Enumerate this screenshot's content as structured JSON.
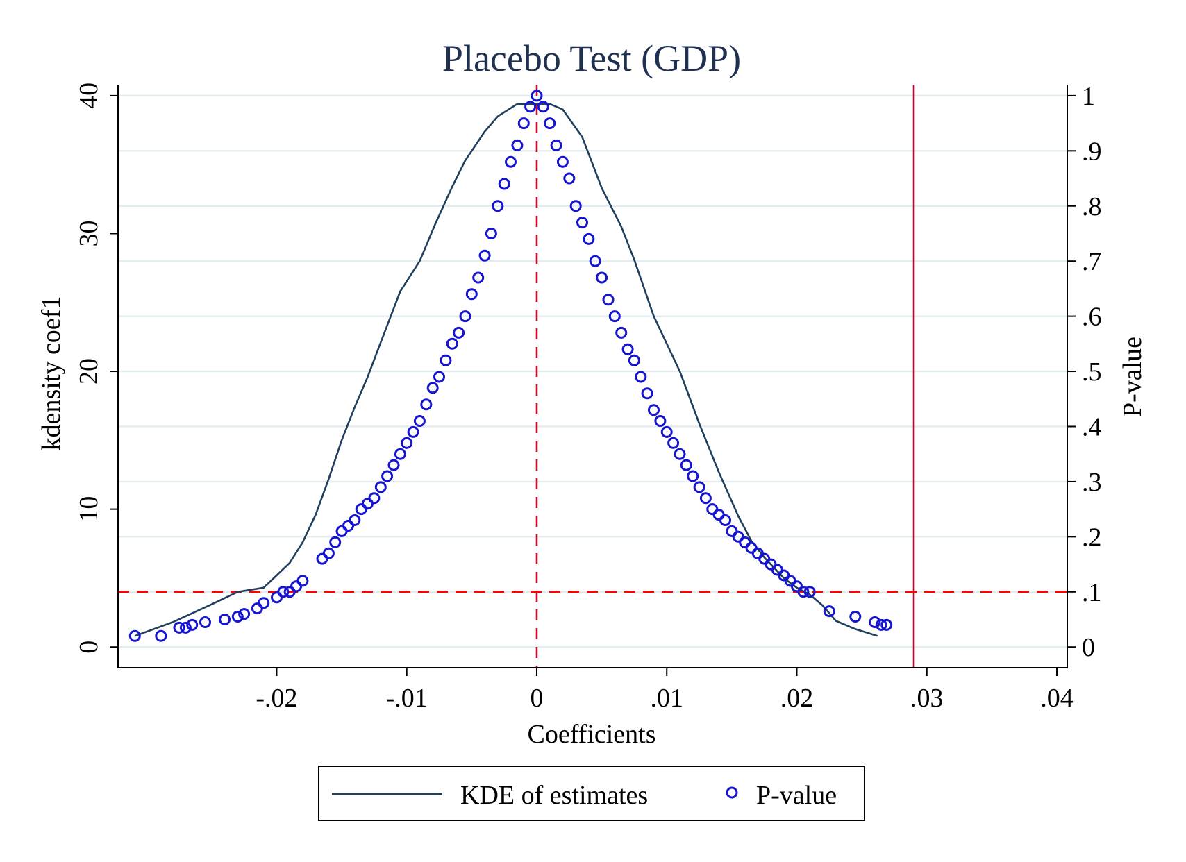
{
  "chart_data": {
    "type": "line",
    "title": "Placebo Test (GDP)",
    "xlabel": "Coefficients",
    "ylabel": "kdensity coef1",
    "y2label": "P-value",
    "xlim": [
      -0.0322,
      0.0408
    ],
    "ylim": [
      -1.5,
      40.8
    ],
    "y2lim": [
      -0.0375,
      1.02
    ],
    "x_ticks": [
      {
        "value": -0.02,
        "label": "-.02"
      },
      {
        "value": -0.01,
        "label": "-.01"
      },
      {
        "value": 0,
        "label": "0"
      },
      {
        "value": 0.01,
        "label": ".01"
      },
      {
        "value": 0.02,
        "label": ".02"
      },
      {
        "value": 0.03,
        "label": ".03"
      },
      {
        "value": 0.04,
        "label": ".04"
      }
    ],
    "y_ticks": [
      {
        "value": 0,
        "label": "0"
      },
      {
        "value": 10,
        "label": "10"
      },
      {
        "value": 20,
        "label": "20"
      },
      {
        "value": 30,
        "label": "30"
      },
      {
        "value": 40,
        "label": "40"
      }
    ],
    "y2_ticks": [
      {
        "value": 0,
        "label": "0"
      },
      {
        "value": 0.1,
        "label": ".1"
      },
      {
        "value": 0.2,
        "label": ".2"
      },
      {
        "value": 0.3,
        "label": ".3"
      },
      {
        "value": 0.4,
        "label": ".4"
      },
      {
        "value": 0.5,
        "label": ".5"
      },
      {
        "value": 0.6,
        "label": ".6"
      },
      {
        "value": 0.7,
        "label": ".7"
      },
      {
        "value": 0.8,
        "label": ".8"
      },
      {
        "value": 0.9,
        "label": ".9"
      },
      {
        "value": 1,
        "label": "1"
      }
    ],
    "grid": true,
    "grid_axis": "y2",
    "legend_position": "bottom",
    "series": [
      {
        "name": "KDE of estimates",
        "type": "line",
        "axis": "y",
        "color": "#1f3f5c",
        "x": [
          -0.0309,
          -0.028,
          -0.025,
          -0.023,
          -0.021,
          -0.019,
          -0.018,
          -0.017,
          -0.016,
          -0.015,
          -0.014,
          -0.013,
          -0.012,
          -0.0105,
          -0.009,
          -0.0078,
          -0.0065,
          -0.0055,
          -0.004,
          -0.003,
          -0.0015,
          0,
          0.001,
          0.002,
          0.0035,
          0.005,
          0.0065,
          0.0075,
          0.009,
          0.011,
          0.0125,
          0.014,
          0.0155,
          0.0165,
          0.0175,
          0.019,
          0.02,
          0.021,
          0.022,
          0.023,
          0.0245,
          0.0262
        ],
        "y": [
          0.8,
          1.8,
          3.1,
          4.0,
          4.3,
          6.1,
          7.6,
          9.6,
          12.2,
          15.0,
          17.4,
          19.6,
          22.1,
          25.8,
          28.0,
          30.7,
          33.4,
          35.3,
          37.4,
          38.5,
          39.4,
          39.4,
          39.4,
          39.0,
          37.0,
          33.3,
          30.5,
          28.1,
          24.0,
          20.0,
          16.2,
          12.7,
          9.5,
          7.7,
          6.5,
          5.0,
          4.3,
          3.8,
          3.0,
          1.9,
          1.3,
          0.8
        ]
      },
      {
        "name": "P-value",
        "type": "scatter",
        "axis": "y2",
        "color": "#1414d2",
        "x": [
          -0.0309,
          -0.0289,
          -0.0275,
          -0.027,
          -0.0265,
          -0.0255,
          -0.024,
          -0.023,
          -0.0225,
          -0.0215,
          -0.021,
          -0.02,
          -0.0195,
          -0.019,
          -0.0185,
          -0.018,
          -0.0165,
          -0.016,
          -0.0155,
          -0.015,
          -0.0145,
          -0.014,
          -0.0135,
          -0.013,
          -0.0125,
          -0.012,
          -0.0115,
          -0.011,
          -0.0105,
          -0.01,
          -0.0095,
          -0.009,
          -0.0085,
          -0.008,
          -0.0075,
          -0.007,
          -0.0065,
          -0.006,
          -0.0055,
          -0.005,
          -0.0045,
          -0.004,
          -0.0035,
          -0.003,
          -0.0025,
          -0.002,
          -0.0015,
          -0.001,
          -0.0005,
          0,
          0.0005,
          0.001,
          0.0015,
          0.002,
          0.0025,
          0.003,
          0.0035,
          0.004,
          0.0045,
          0.005,
          0.0055,
          0.006,
          0.0065,
          0.007,
          0.0075,
          0.008,
          0.0085,
          0.009,
          0.0095,
          0.01,
          0.0105,
          0.011,
          0.0115,
          0.012,
          0.0125,
          0.013,
          0.0135,
          0.014,
          0.0145,
          0.015,
          0.0155,
          0.016,
          0.0165,
          0.017,
          0.0175,
          0.018,
          0.0185,
          0.019,
          0.0195,
          0.02,
          0.0205,
          0.021,
          0.0225,
          0.0245,
          0.026,
          0.0265,
          0.0269
        ],
        "y": [
          0.02,
          0.02,
          0.035,
          0.035,
          0.04,
          0.045,
          0.05,
          0.055,
          0.06,
          0.07,
          0.08,
          0.09,
          0.1,
          0.1,
          0.11,
          0.12,
          0.16,
          0.17,
          0.19,
          0.21,
          0.22,
          0.23,
          0.25,
          0.26,
          0.27,
          0.29,
          0.31,
          0.33,
          0.35,
          0.37,
          0.39,
          0.41,
          0.44,
          0.47,
          0.49,
          0.52,
          0.55,
          0.57,
          0.6,
          0.64,
          0.67,
          0.71,
          0.75,
          0.8,
          0.84,
          0.88,
          0.91,
          0.95,
          0.98,
          1.0,
          0.98,
          0.95,
          0.91,
          0.88,
          0.85,
          0.8,
          0.77,
          0.74,
          0.7,
          0.67,
          0.63,
          0.6,
          0.57,
          0.54,
          0.52,
          0.49,
          0.46,
          0.43,
          0.41,
          0.39,
          0.37,
          0.35,
          0.33,
          0.31,
          0.29,
          0.27,
          0.25,
          0.24,
          0.23,
          0.21,
          0.2,
          0.19,
          0.18,
          0.17,
          0.16,
          0.15,
          0.14,
          0.13,
          0.12,
          0.11,
          0.1,
          0.1,
          0.065,
          0.055,
          0.045,
          0.04,
          0.04
        ]
      }
    ],
    "reference_lines": [
      {
        "orientation": "vertical",
        "x": 0,
        "style": "dashed",
        "color": "#c8102e"
      },
      {
        "orientation": "vertical",
        "x": 0.029,
        "style": "solid",
        "color": "#a01030"
      },
      {
        "orientation": "horizontal",
        "y2": 0.1,
        "style": "dashed",
        "color": "#ff0000"
      }
    ]
  }
}
